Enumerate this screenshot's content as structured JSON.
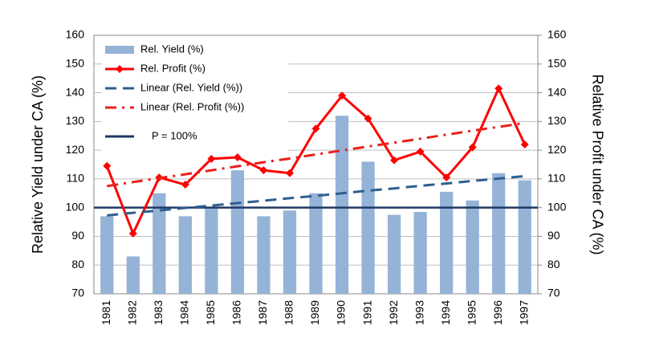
{
  "chart_data": {
    "type": "bar",
    "y_label": "Relative Yield under CA (%)",
    "y2_label": "Relative Profit under CA (%)",
    "categories": [
      "1981",
      "1982",
      "1983",
      "1984",
      "1985",
      "1986",
      "1987",
      "1988",
      "1989",
      "1990",
      "1991",
      "1992",
      "1993",
      "1994",
      "1995",
      "1996",
      "1997"
    ],
    "series": [
      {
        "name": "Rel. Yield (%)",
        "type": "bar",
        "color": "#95b3d7",
        "values": [
          97,
          83,
          105,
          97,
          100,
          113,
          97,
          99,
          105,
          132,
          116,
          97.5,
          98.5,
          105.5,
          102.5,
          112,
          109.5
        ]
      },
      {
        "name": "Rel. Profit (%)",
        "type": "line",
        "axis": "y2",
        "color": "#ff0000",
        "marker": "diamond",
        "dash": "solid",
        "values": [
          114.5,
          91,
          110.5,
          108,
          117,
          117.5,
          113,
          112,
          127.5,
          139,
          131,
          116.5,
          119.5,
          110.5,
          121,
          141.5,
          122
        ]
      },
      {
        "name": "Linear (Rel. Yield (%))",
        "type": "line",
        "color": "#2e5f8f",
        "dash": "dashed",
        "values": [
          97.3,
          98.2,
          99.0,
          99.9,
          100.7,
          101.6,
          102.4,
          103.3,
          104.1,
          105.0,
          105.9,
          106.7,
          107.6,
          108.4,
          109.3,
          110.1,
          111.0
        ]
      },
      {
        "name": "Linear (Rel. Profit (%))",
        "type": "line",
        "axis": "y2",
        "color": "#e8211b",
        "dash": "dash-dot",
        "values": [
          107.5,
          108.9,
          110.3,
          111.6,
          113.0,
          114.4,
          115.8,
          117.1,
          118.5,
          119.9,
          121.3,
          122.6,
          124.0,
          125.4,
          126.8,
          128.1,
          129.5
        ]
      }
    ],
    "reference_lines": [
      {
        "name": "P = 100%",
        "value": 100,
        "color": "#1f3864"
      }
    ],
    "ylim": [
      70,
      160
    ],
    "yticks": [
      70,
      80,
      90,
      100,
      110,
      120,
      130,
      140,
      150,
      160
    ],
    "y2lim": [
      70,
      160
    ],
    "y2ticks": [
      70,
      80,
      90,
      100,
      110,
      120,
      130,
      140,
      150,
      160
    ],
    "grid": true,
    "legend": "top-left"
  }
}
